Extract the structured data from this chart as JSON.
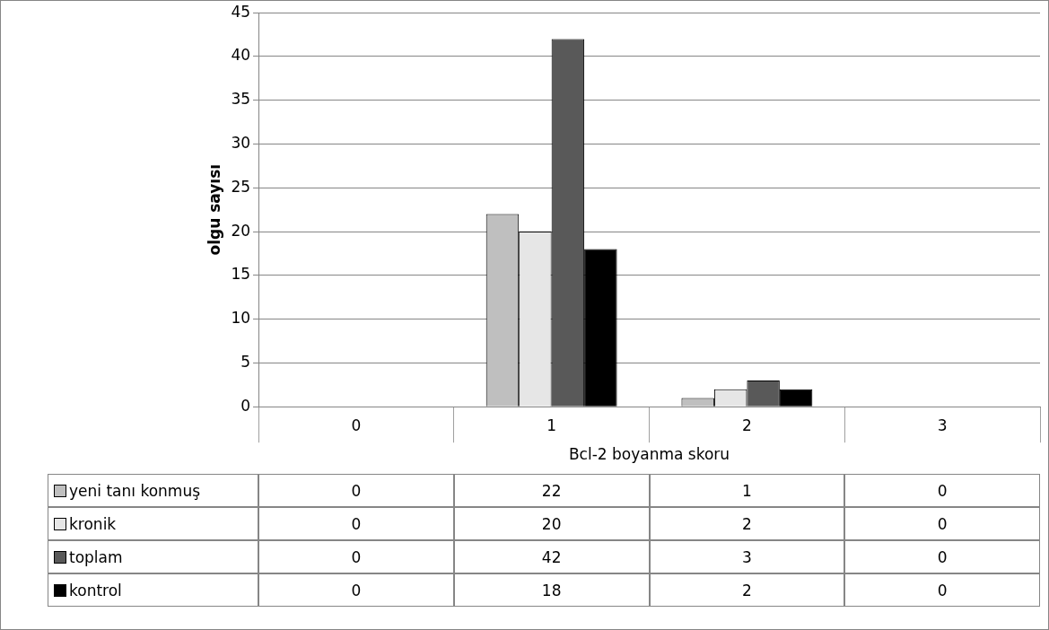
{
  "chart_data": {
    "type": "bar",
    "xlabel": "Bcl-2 boyanma skoru",
    "ylabel": "olgu sayısı",
    "categories": [
      "0",
      "1",
      "2",
      "3"
    ],
    "series": [
      {
        "name": "yeni tanı konmuş",
        "color": "#bfbfbf",
        "values": [
          0,
          22,
          1,
          0
        ]
      },
      {
        "name": "kronik",
        "color": "#e6e6e6",
        "values": [
          0,
          20,
          2,
          0
        ]
      },
      {
        "name": "toplam",
        "color": "#595959",
        "values": [
          0,
          42,
          3,
          0
        ]
      },
      {
        "name": "kontrol",
        "color": "#000000",
        "values": [
          0,
          18,
          2,
          0
        ]
      }
    ],
    "ylim": [
      0,
      45
    ],
    "yticks": [
      0,
      5,
      10,
      15,
      20,
      25,
      30,
      35,
      40,
      45
    ],
    "grid": "y",
    "legend": "bottom",
    "data_labels": true
  }
}
